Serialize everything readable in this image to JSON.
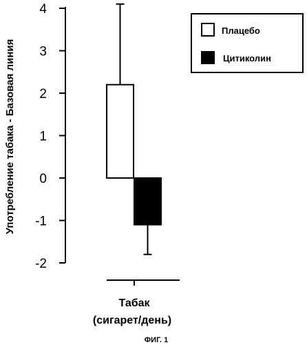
{
  "chart_data": {
    "type": "bar",
    "categories": [
      "Табак (сигарет/день)"
    ],
    "category_label_lines": [
      "Табак",
      "(сигарет/день)"
    ],
    "series": [
      {
        "name": "Плацебо",
        "values": [
          2.2
        ],
        "error_low": [
          0.0
        ],
        "error_high": [
          4.1
        ],
        "color": "#ffffff"
      },
      {
        "name": "Цитиколин",
        "values": [
          -1.1
        ],
        "error_low": [
          -1.8
        ],
        "error_high": [
          0.0
        ],
        "color": "#000000"
      }
    ],
    "ylabel": "Употребление табака - Базовая линия",
    "xlabel": "",
    "ylim": [
      -2,
      4
    ],
    "yticks": [
      "-2",
      "-1",
      "0",
      "1",
      "2",
      "3",
      "4"
    ],
    "grid": false,
    "legend_position": "top-right",
    "caption": "ФИГ. 1"
  }
}
